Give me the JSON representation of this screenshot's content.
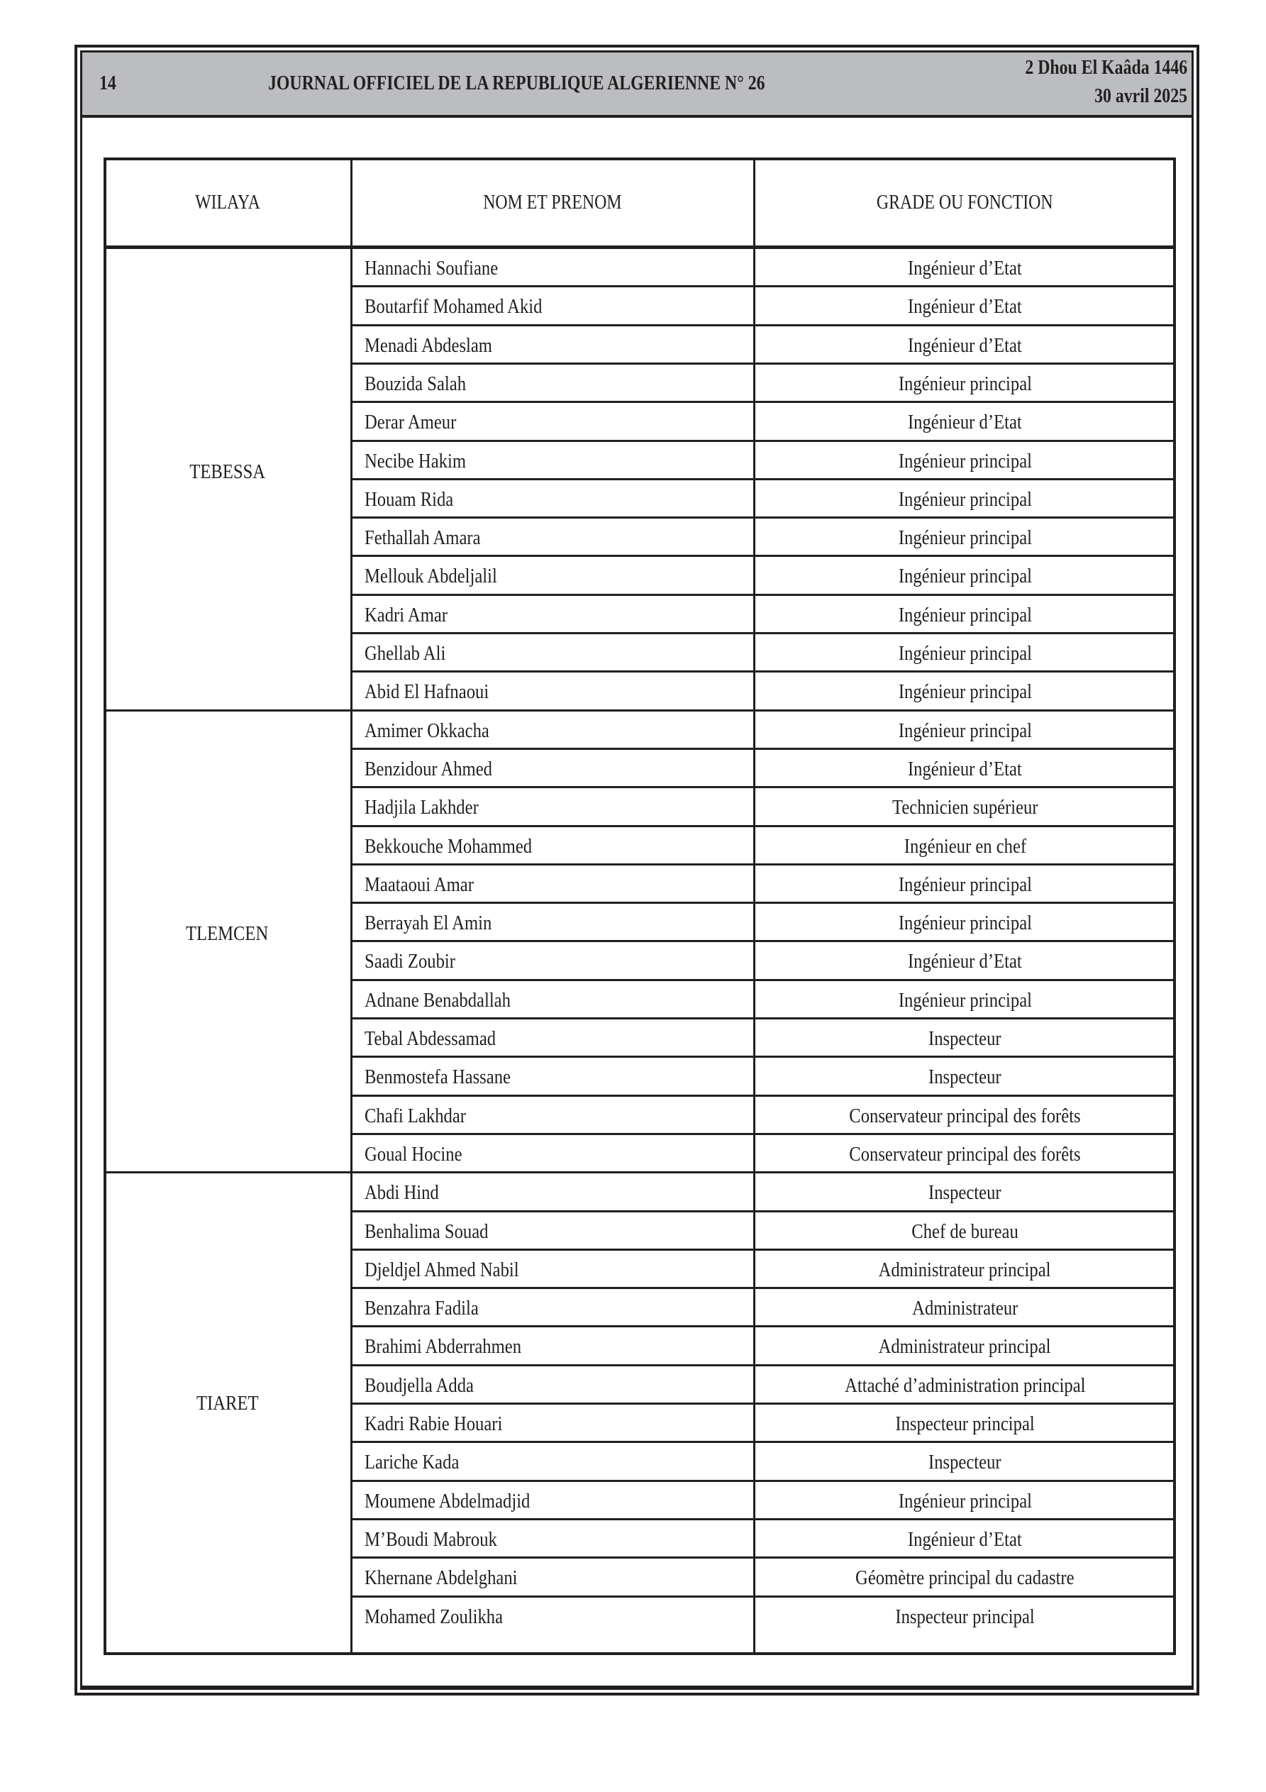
{
  "header": {
    "page_number": "14",
    "title": "JOURNAL OFFICIEL DE LA REPUBLIQUE ALGERIENNE N° 26",
    "date_hijri": "2 Dhou El Kaâda 1446",
    "date_gregorian": "30 avril 2025"
  },
  "table": {
    "columns": [
      "WILAYA",
      "NOM ET PRENOM",
      "GRADE OU FONCTION"
    ],
    "groups": [
      {
        "wilaya": "TEBESSA",
        "rows": [
          {
            "name": "Hannachi Soufiane",
            "grade": "Ingénieur d’Etat"
          },
          {
            "name": "Boutarfif Mohamed Akid",
            "grade": "Ingénieur d’Etat"
          },
          {
            "name": "Menadi Abdeslam",
            "grade": "Ingénieur d’Etat"
          },
          {
            "name": "Bouzida Salah",
            "grade": "Ingénieur principal"
          },
          {
            "name": "Derar Ameur",
            "grade": "Ingénieur d’Etat"
          },
          {
            "name": "Necibe Hakim",
            "grade": "Ingénieur principal"
          },
          {
            "name": "Houam Rida",
            "grade": "Ingénieur principal"
          },
          {
            "name": "Fethallah Amara",
            "grade": "Ingénieur principal"
          },
          {
            "name": "Mellouk Abdeljalil",
            "grade": "Ingénieur principal"
          },
          {
            "name": "Kadri Amar",
            "grade": "Ingénieur principal"
          },
          {
            "name": "Ghellab Ali",
            "grade": "Ingénieur principal"
          },
          {
            "name": "Abid El Hafnaoui",
            "grade": "Ingénieur principal"
          }
        ]
      },
      {
        "wilaya": "TLEMCEN",
        "rows": [
          {
            "name": "Amimer Okkacha",
            "grade": "Ingénieur principal"
          },
          {
            "name": "Benzidour Ahmed",
            "grade": "Ingénieur d’Etat"
          },
          {
            "name": "Hadjila Lakhder",
            "grade": "Technicien supérieur"
          },
          {
            "name": "Bekkouche Mohammed",
            "grade": "Ingénieur en chef"
          },
          {
            "name": "Maataoui Amar",
            "grade": "Ingénieur principal"
          },
          {
            "name": "Berrayah El Amin",
            "grade": "Ingénieur principal"
          },
          {
            "name": "Saadi Zoubir",
            "grade": "Ingénieur d’Etat"
          },
          {
            "name": "Adnane Benabdallah",
            "grade": "Ingénieur principal"
          },
          {
            "name": "Tebal Abdessamad",
            "grade": "Inspecteur"
          },
          {
            "name": "Benmostefa Hassane",
            "grade": "Inspecteur"
          },
          {
            "name": "Chafi Lakhdar",
            "grade": "Conservateur principal des forêts"
          },
          {
            "name": "Goual Hocine",
            "grade": "Conservateur principal des forêts"
          }
        ]
      },
      {
        "wilaya": "TIARET",
        "rows": [
          {
            "name": "Abdi Hind",
            "grade": "Inspecteur"
          },
          {
            "name": "Benhalima Souad",
            "grade": "Chef de bureau"
          },
          {
            "name": "Djeldjel Ahmed Nabil",
            "grade": "Administrateur principal"
          },
          {
            "name": "Benzahra Fadila",
            "grade": "Administrateur"
          },
          {
            "name": "Brahimi Abderrahmen",
            "grade": "Administrateur principal"
          },
          {
            "name": "Boudjella Adda",
            "grade": "Attaché d’administration principal"
          },
          {
            "name": "Kadri Rabie Houari",
            "grade": "Inspecteur principal"
          },
          {
            "name": "Lariche Kada",
            "grade": "Inspecteur"
          },
          {
            "name": "Moumene Abdelmadjid",
            "grade": "Ingénieur principal"
          },
          {
            "name": "M’Boudi Mabrouk",
            "grade": "Ingénieur d’Etat"
          },
          {
            "name": "Khernane Abdelghani",
            "grade": "Géomètre principal du cadastre"
          },
          {
            "name": "Mohamed Zoulikha",
            "grade": "Inspecteur principal"
          }
        ]
      }
    ]
  }
}
